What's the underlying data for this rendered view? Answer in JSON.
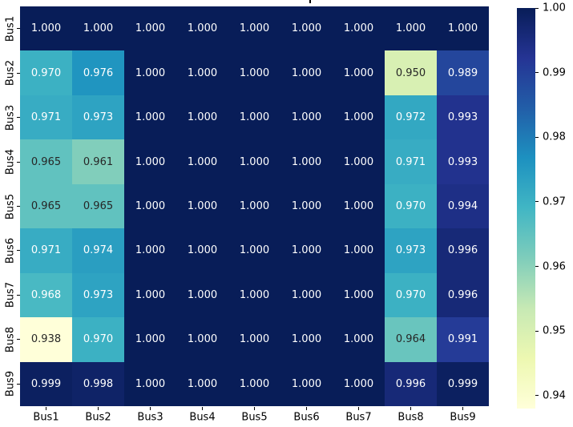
{
  "figure": {
    "background": "#ffffff",
    "title_clipped_fragment_visible": true
  },
  "chart_data": {
    "type": "heatmap",
    "x_categories": [
      "Bus1",
      "Bus2",
      "Bus3",
      "Bus4",
      "Bus5",
      "Bus6",
      "Bus7",
      "Bus8",
      "Bus9"
    ],
    "y_categories": [
      "Bus1",
      "Bus2",
      "Bus3",
      "Bus4",
      "Bus5",
      "Bus6",
      "Bus7",
      "Bus8",
      "Bus9"
    ],
    "rows": [
      [
        1.0,
        1.0,
        1.0,
        1.0,
        1.0,
        1.0,
        1.0,
        1.0,
        1.0
      ],
      [
        0.97,
        0.976,
        1.0,
        1.0,
        1.0,
        1.0,
        1.0,
        0.95,
        0.989
      ],
      [
        0.971,
        0.973,
        1.0,
        1.0,
        1.0,
        1.0,
        1.0,
        0.972,
        0.993
      ],
      [
        0.965,
        0.961,
        1.0,
        1.0,
        1.0,
        1.0,
        1.0,
        0.971,
        0.993
      ],
      [
        0.965,
        0.965,
        1.0,
        1.0,
        1.0,
        1.0,
        1.0,
        0.97,
        0.994
      ],
      [
        0.971,
        0.974,
        1.0,
        1.0,
        1.0,
        1.0,
        1.0,
        0.973,
        0.996
      ],
      [
        0.968,
        0.973,
        1.0,
        1.0,
        1.0,
        1.0,
        1.0,
        0.97,
        0.996
      ],
      [
        0.938,
        0.97,
        1.0,
        1.0,
        1.0,
        1.0,
        1.0,
        0.964,
        0.991
      ],
      [
        0.999,
        0.998,
        1.0,
        1.0,
        1.0,
        1.0,
        1.0,
        0.996,
        0.999
      ]
    ],
    "annotation_decimals": 3,
    "vmin": 0.938,
    "vmax": 1.0,
    "grid": false,
    "colormap_name": "YlGnBu",
    "colormap_stops": [
      {
        "t": 0.0,
        "color": "#ffffd9"
      },
      {
        "t": 0.125,
        "color": "#edf8b1"
      },
      {
        "t": 0.25,
        "color": "#c7e9b4"
      },
      {
        "t": 0.375,
        "color": "#7fcdbb"
      },
      {
        "t": 0.5,
        "color": "#41b6c4"
      },
      {
        "t": 0.625,
        "color": "#1d91c0"
      },
      {
        "t": 0.75,
        "color": "#225ea8"
      },
      {
        "t": 0.875,
        "color": "#253494"
      },
      {
        "t": 1.0,
        "color": "#081d58"
      }
    ],
    "annotation_colors": {
      "on_light": "#262626",
      "on_dark": "#ffffff"
    },
    "colorbar": {
      "position": "right",
      "tick_labels": [
        "1.00",
        "0.99",
        "0.98",
        "0.97",
        "0.96",
        "0.95",
        "0.94"
      ],
      "tick_values": [
        1.0,
        0.99,
        0.98,
        0.97,
        0.96,
        0.95,
        0.94
      ]
    }
  }
}
